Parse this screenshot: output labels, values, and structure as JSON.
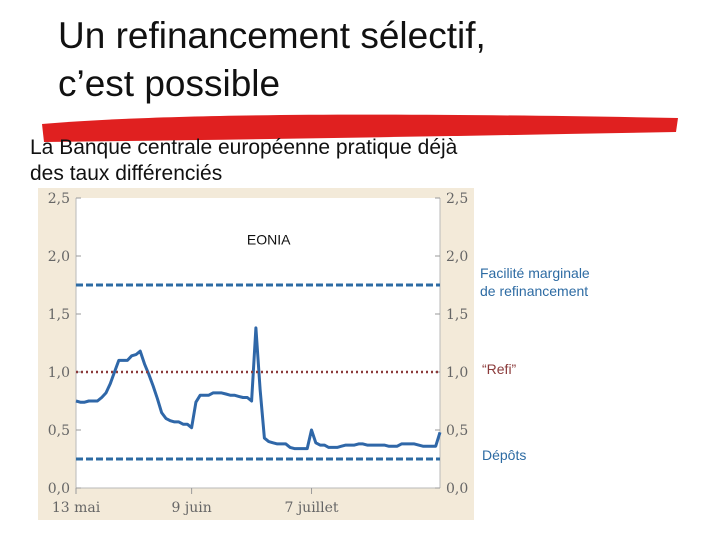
{
  "slide": {
    "title_line1": "Un refinancement sélectif,",
    "title_line2": "c’est possible",
    "subtitle_line1": "La Banque centrale européenne pratique déjà",
    "subtitle_line2": "des taux différenciés"
  },
  "colors": {
    "eonia": "#2f67a8",
    "marginal": "#2d6ba3",
    "refi": "#8b3a3a",
    "deposit": "#2d6ba3",
    "underline": "#e02020",
    "panel": "#f3ead9"
  },
  "chart_data": {
    "type": "line",
    "title": "",
    "xlabel": "",
    "ylabel": "",
    "ylim": [
      0,
      2.5
    ],
    "yticks": [
      "0,0",
      "0,5",
      "1,0",
      "1,5",
      "2,0",
      "2,5"
    ],
    "x_ticks": [
      {
        "day": 0,
        "label": "13 mai"
      },
      {
        "day": 27,
        "label": "9 juin"
      },
      {
        "day": 55,
        "label": "7 juillet"
      }
    ],
    "x_range": [
      0,
      85
    ],
    "grid": false,
    "series": [
      {
        "name": "EONIA",
        "style": "solid",
        "points": [
          [
            0,
            0.75
          ],
          [
            1,
            0.74
          ],
          [
            2,
            0.74
          ],
          [
            3,
            0.75
          ],
          [
            4,
            0.75
          ],
          [
            5,
            0.75
          ],
          [
            6,
            0.78
          ],
          [
            7,
            0.82
          ],
          [
            8,
            0.9
          ],
          [
            9,
            1.0
          ],
          [
            10,
            1.1
          ],
          [
            11,
            1.1
          ],
          [
            12,
            1.1
          ],
          [
            13,
            1.14
          ],
          [
            14,
            1.15
          ],
          [
            15,
            1.18
          ],
          [
            16,
            1.07
          ],
          [
            17,
            0.98
          ],
          [
            18,
            0.88
          ],
          [
            19,
            0.77
          ],
          [
            20,
            0.65
          ],
          [
            21,
            0.6
          ],
          [
            22,
            0.58
          ],
          [
            23,
            0.57
          ],
          [
            24,
            0.57
          ],
          [
            25,
            0.55
          ],
          [
            26,
            0.55
          ],
          [
            27,
            0.52
          ],
          [
            28,
            0.74
          ],
          [
            29,
            0.8
          ],
          [
            30,
            0.8
          ],
          [
            31,
            0.8
          ],
          [
            32,
            0.82
          ],
          [
            33,
            0.82
          ],
          [
            34,
            0.82
          ],
          [
            35,
            0.81
          ],
          [
            36,
            0.8
          ],
          [
            37,
            0.8
          ],
          [
            38,
            0.79
          ],
          [
            39,
            0.78
          ],
          [
            40,
            0.78
          ],
          [
            41,
            0.75
          ],
          [
            42,
            1.38
          ],
          [
            43,
            0.85
          ],
          [
            44,
            0.43
          ],
          [
            45,
            0.4
          ],
          [
            46,
            0.39
          ],
          [
            47,
            0.38
          ],
          [
            48,
            0.38
          ],
          [
            49,
            0.38
          ],
          [
            50,
            0.35
          ],
          [
            51,
            0.34
          ],
          [
            52,
            0.34
          ],
          [
            53,
            0.34
          ],
          [
            54,
            0.34
          ],
          [
            55,
            0.5
          ],
          [
            56,
            0.39
          ],
          [
            57,
            0.37
          ],
          [
            58,
            0.37
          ],
          [
            59,
            0.35
          ],
          [
            60,
            0.35
          ],
          [
            61,
            0.35
          ],
          [
            62,
            0.36
          ],
          [
            63,
            0.37
          ],
          [
            64,
            0.37
          ],
          [
            65,
            0.37
          ],
          [
            66,
            0.38
          ],
          [
            67,
            0.38
          ],
          [
            68,
            0.37
          ],
          [
            69,
            0.37
          ],
          [
            70,
            0.37
          ],
          [
            71,
            0.37
          ],
          [
            72,
            0.37
          ],
          [
            73,
            0.36
          ],
          [
            74,
            0.36
          ],
          [
            75,
            0.36
          ],
          [
            76,
            0.38
          ],
          [
            77,
            0.38
          ],
          [
            78,
            0.38
          ],
          [
            79,
            0.38
          ],
          [
            80,
            0.37
          ],
          [
            81,
            0.36
          ],
          [
            82,
            0.36
          ],
          [
            83,
            0.36
          ],
          [
            84,
            0.36
          ],
          [
            85,
            0.48
          ]
        ]
      },
      {
        "name": "Facilité marginale de refinancement",
        "style": "dashed",
        "value": 1.75
      },
      {
        "name": "“Refi”",
        "style": "dotted",
        "value": 1.0
      },
      {
        "name": "Dépôts",
        "style": "dashed",
        "value": 0.25
      }
    ],
    "legend": {
      "eonia": "EONIA",
      "marginal_line1": "Facilité marginale",
      "marginal_line2": "de refinancement",
      "refi": "“Refi”",
      "deposit": "Dépôts"
    }
  }
}
